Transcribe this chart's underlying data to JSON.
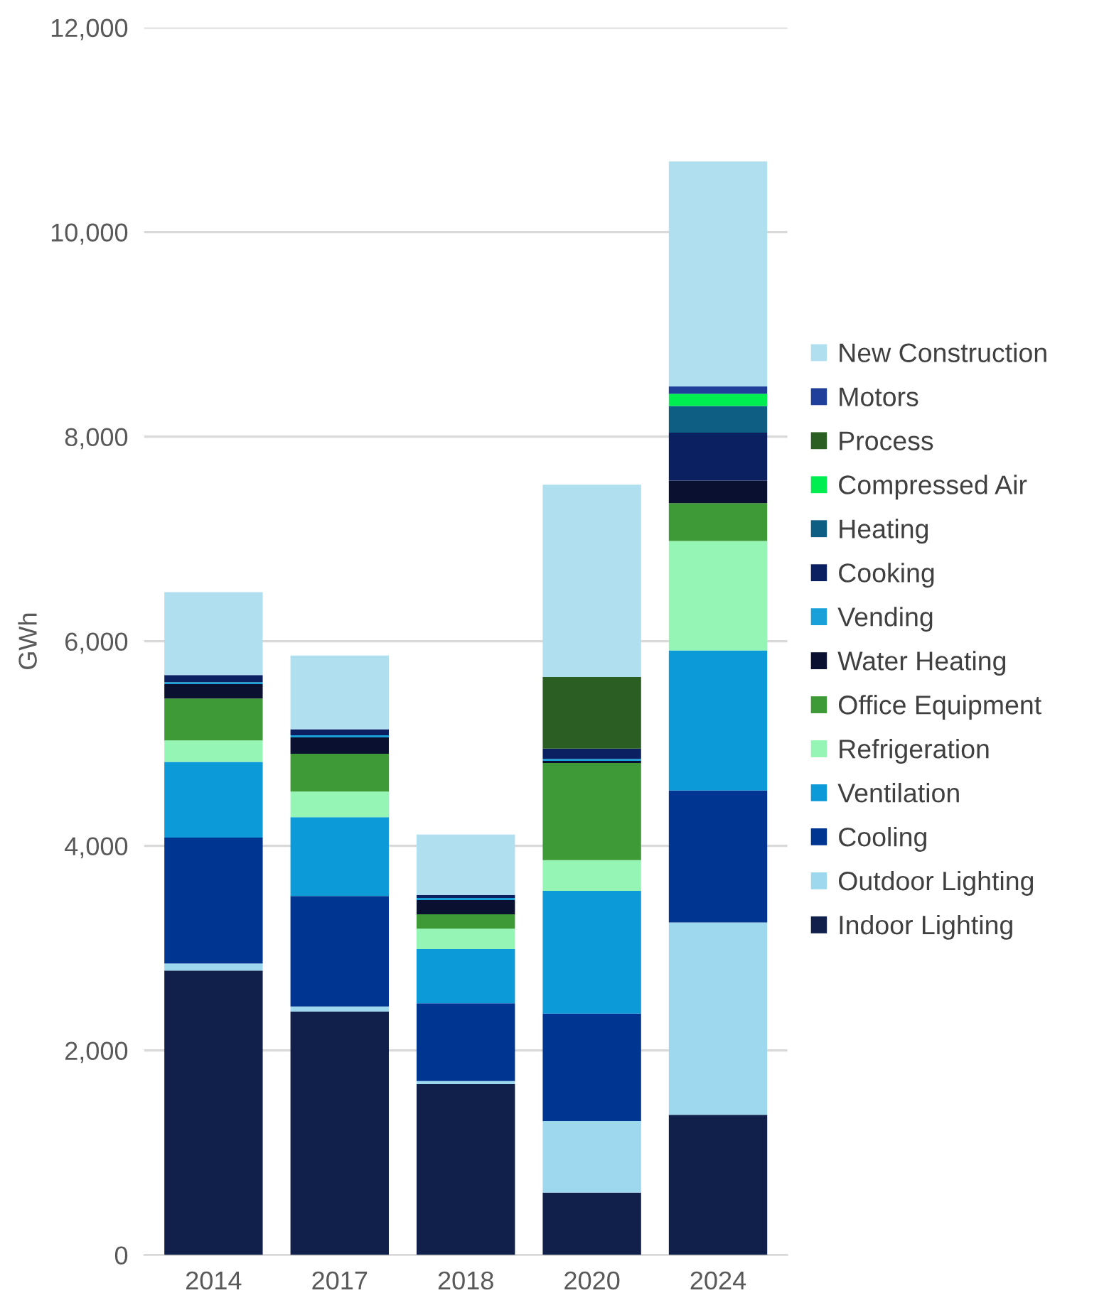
{
  "chart_data": {
    "type": "bar",
    "stacked": true,
    "ylabel": "GWh",
    "categories": [
      "2014",
      "2017",
      "2018",
      "2020",
      "2024"
    ],
    "ylim": [
      0,
      12000
    ],
    "yticks": [
      {
        "value": 0,
        "label": "0"
      },
      {
        "value": 2000,
        "label": "2,000"
      },
      {
        "value": 4000,
        "label": "4,000"
      },
      {
        "value": 6000,
        "label": "6,000"
      },
      {
        "value": 8000,
        "label": "8,000"
      },
      {
        "value": 10000,
        "label": "10,000"
      },
      {
        "value": 12000,
        "label": "12,000"
      }
    ],
    "grid": "y",
    "legend": "right",
    "series": [
      {
        "name": "Indoor Lighting",
        "color": "#10204a",
        "values": [
          2780,
          2380,
          1670,
          610,
          1370
        ]
      },
      {
        "name": "Outdoor Lighting",
        "color": "#9ed8ef",
        "values": [
          70,
          50,
          30,
          700,
          1880
        ]
      },
      {
        "name": "Cooling",
        "color": "#003591",
        "values": [
          1230,
          1080,
          760,
          1050,
          1290
        ]
      },
      {
        "name": "Ventilation",
        "color": "#0c9ad8",
        "values": [
          740,
          770,
          530,
          1200,
          1370
        ]
      },
      {
        "name": "Refrigeration",
        "color": "#94f5b4",
        "values": [
          210,
          250,
          200,
          300,
          1070
        ]
      },
      {
        "name": "Office Equipment",
        "color": "#3e9a36",
        "values": [
          410,
          370,
          140,
          950,
          370
        ]
      },
      {
        "name": "Water Heating",
        "color": "#0a1030",
        "values": [
          140,
          160,
          140,
          20,
          220
        ]
      },
      {
        "name": "Vending",
        "color": "#1aa0d8",
        "values": [
          20,
          20,
          20,
          20,
          0
        ]
      },
      {
        "name": "Cooking",
        "color": "#0a2060",
        "values": [
          70,
          60,
          30,
          100,
          470
        ]
      },
      {
        "name": "Heating",
        "color": "#0e5e84",
        "values": [
          0,
          0,
          0,
          0,
          260
        ]
      },
      {
        "name": "Compressed Air",
        "color": "#00ee50",
        "values": [
          0,
          0,
          0,
          0,
          120
        ]
      },
      {
        "name": "Process",
        "color": "#2a5e22",
        "values": [
          0,
          0,
          0,
          700,
          0
        ]
      },
      {
        "name": "Motors",
        "color": "#1f3f9a",
        "values": [
          0,
          0,
          0,
          0,
          70
        ]
      },
      {
        "name": "New Construction",
        "color": "#b0dff0",
        "values": [
          810,
          720,
          590,
          1880,
          2200
        ]
      }
    ]
  }
}
